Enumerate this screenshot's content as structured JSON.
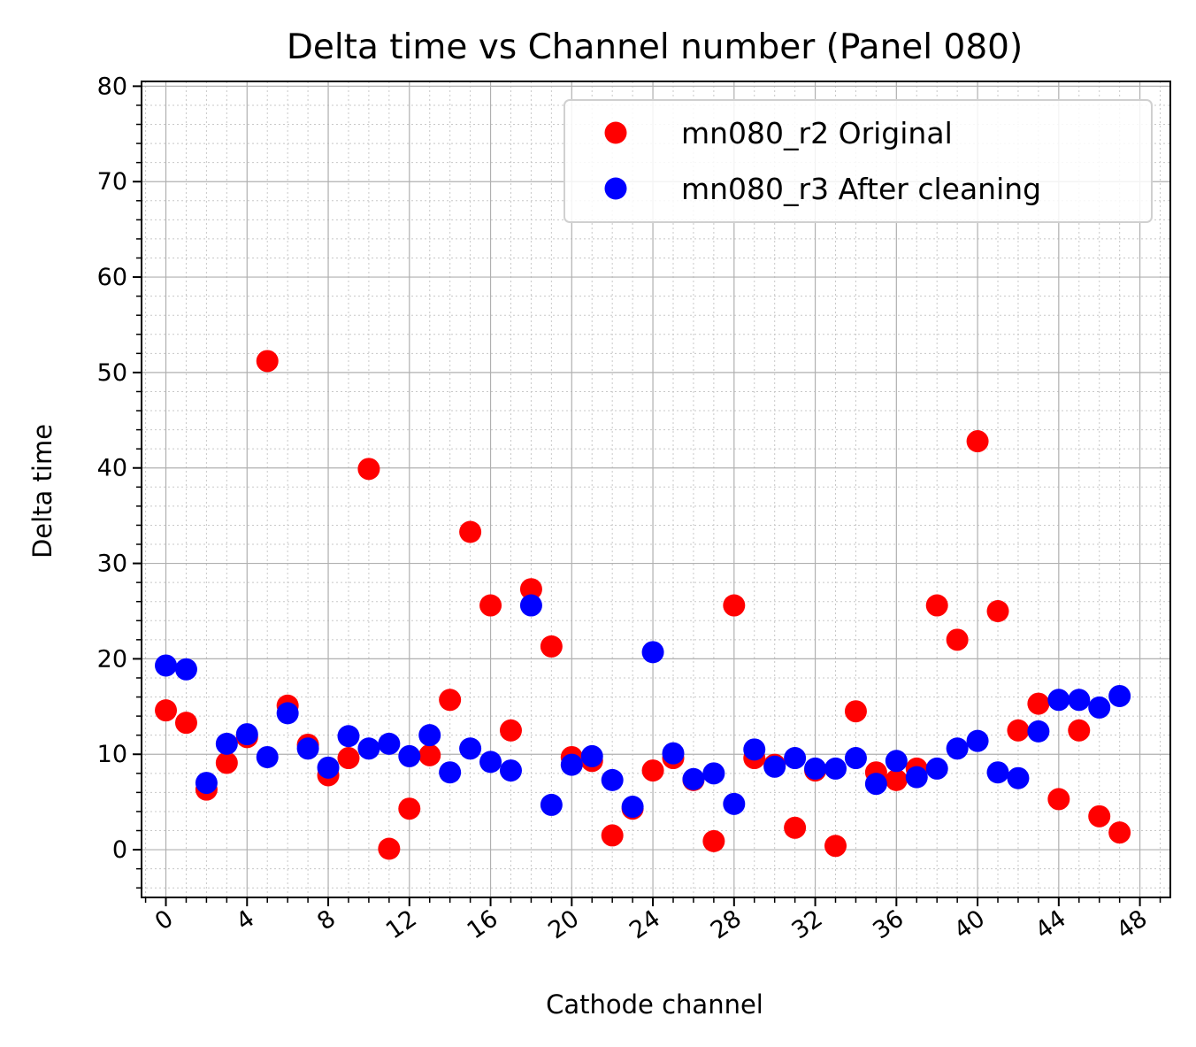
{
  "chart_data": {
    "type": "scatter",
    "title": "Delta time vs Channel number (Panel 080)",
    "xlabel": "Cathode channel",
    "ylabel": "Delta time",
    "xlim": [
      -1.2,
      49.5
    ],
    "ylim": [
      -5,
      80.5
    ],
    "xticks": [
      0,
      4,
      8,
      12,
      16,
      20,
      24,
      28,
      32,
      36,
      40,
      44,
      48
    ],
    "yticks": [
      0,
      10,
      20,
      30,
      40,
      50,
      60,
      70,
      80
    ],
    "grid": true,
    "minor_grid": true,
    "legend_position": "top-right",
    "series": [
      {
        "name": "mn080_r2 Original",
        "color": "#ff0000",
        "x": [
          0,
          1,
          2,
          3,
          4,
          5,
          6,
          7,
          8,
          9,
          10,
          11,
          12,
          13,
          14,
          15,
          16,
          17,
          18,
          19,
          20,
          21,
          22,
          23,
          24,
          25,
          26,
          27,
          28,
          29,
          30,
          31,
          32,
          33,
          34,
          35,
          36,
          37,
          38,
          39,
          40,
          41,
          42,
          43,
          44,
          45,
          46,
          47
        ],
        "y": [
          14.6,
          13.3,
          6.3,
          9.1,
          11.8,
          51.2,
          15.1,
          11.0,
          7.8,
          9.6,
          39.9,
          0.1,
          4.3,
          9.9,
          15.7,
          33.3,
          25.6,
          12.5,
          27.3,
          21.3,
          9.7,
          9.3,
          1.5,
          4.3,
          8.3,
          9.6,
          7.3,
          0.9,
          25.6,
          9.6,
          8.9,
          2.3,
          8.3,
          0.4,
          14.5,
          8.1,
          7.3,
          8.5,
          25.6,
          22.0,
          42.8,
          25.0,
          12.5,
          15.3,
          5.3,
          12.5,
          3.5,
          1.8
        ]
      },
      {
        "name": "mn080_r3 After cleaning",
        "color": "#0000ff",
        "x": [
          0,
          1,
          2,
          3,
          4,
          5,
          6,
          7,
          8,
          9,
          10,
          11,
          12,
          13,
          14,
          15,
          16,
          17,
          18,
          19,
          20,
          21,
          22,
          23,
          24,
          25,
          26,
          27,
          28,
          29,
          30,
          31,
          32,
          33,
          34,
          35,
          36,
          37,
          38,
          39,
          40,
          41,
          42,
          43,
          44,
          45,
          46,
          47
        ],
        "y": [
          19.3,
          18.9,
          7.0,
          11.1,
          12.1,
          9.7,
          14.3,
          10.6,
          8.6,
          11.9,
          10.6,
          11.1,
          9.8,
          12.0,
          8.1,
          10.6,
          9.2,
          8.3,
          25.6,
          4.7,
          8.9,
          9.8,
          7.3,
          4.5,
          20.7,
          10.1,
          7.4,
          8.0,
          4.8,
          10.5,
          8.7,
          9.6,
          8.5,
          8.5,
          9.6,
          6.9,
          9.3,
          7.6,
          8.5,
          10.6,
          11.4,
          8.1,
          7.5,
          12.4,
          15.7,
          15.7,
          14.9,
          16.1
        ]
      }
    ]
  }
}
